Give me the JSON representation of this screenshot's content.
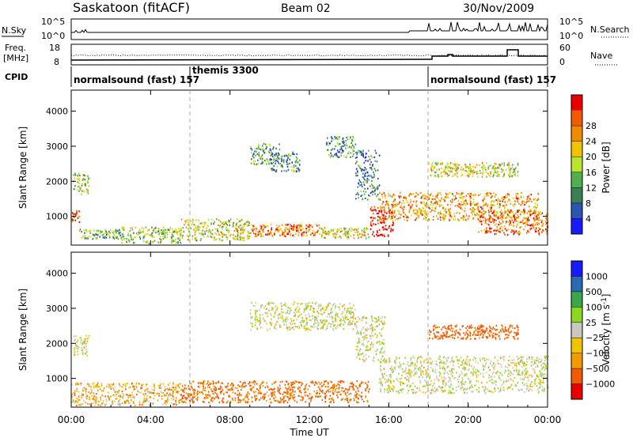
{
  "header": {
    "station": "Saskatoon (fitACF)",
    "beam": "Beam 02",
    "date": "30/Nov/2009"
  },
  "nsky_panel": {
    "left_label": "N.Sky",
    "right_label": "N.Search",
    "left_ticks": [
      "10^5",
      "10^0"
    ],
    "right_ticks": [
      "10^5",
      "10^0"
    ]
  },
  "freq_panel": {
    "left_label_1": "Freq.",
    "left_label_2": "[MHz]",
    "right_label": "Nave",
    "left_ticks": [
      "18",
      "8"
    ],
    "right_ticks": [
      "60",
      "0"
    ]
  },
  "cpid": {
    "label": "CPID",
    "segments": [
      {
        "name": "normalsound (fast) 157",
        "start_hr": 0,
        "end_hr": 6
      },
      {
        "name": "themis 3300",
        "start_hr": 6,
        "end_hr": 18
      },
      {
        "name": "normalsound (fast) 157",
        "start_hr": 18,
        "end_hr": 24
      }
    ]
  },
  "colors": {
    "power": [
      "#1a1aff",
      "#2a56b0",
      "#3d7f55",
      "#4fb04f",
      "#b9e52a",
      "#f2c400",
      "#f28a00",
      "#f25a00",
      "#e80000"
    ],
    "velocity": [
      "#e80000",
      "#f25a00",
      "#f29a00",
      "#f2c400",
      "#c8c8c0",
      "#8ad820",
      "#3aa84a",
      "#2a6ab0",
      "#1a1aff"
    ]
  },
  "chart_data": [
    {
      "type": "heatmap",
      "name": "power",
      "x_ticks": [
        "00:00",
        "04:00",
        "08:00",
        "12:00",
        "16:00",
        "20:00",
        "00:00"
      ],
      "xlim": [
        0,
        24
      ],
      "ylabel": "Slant Range [km]",
      "y_ticks": [
        1000,
        2000,
        3000,
        4000
      ],
      "ylim": [
        180,
        4600
      ],
      "colorbar_label": "Power [dB]",
      "colorbar_ticks": [
        "4",
        "8",
        "12",
        "16",
        "20",
        "24",
        "28"
      ],
      "colorbar_range": [
        0,
        30
      ],
      "echo_regions": [
        {
          "t0": 0.1,
          "t1": 0.9,
          "r0": 1650,
          "r1": 2250,
          "level": 14
        },
        {
          "t0": 0.0,
          "t1": 0.4,
          "r0": 850,
          "r1": 1200,
          "level": 26
        },
        {
          "t0": 0.4,
          "t1": 2.5,
          "r0": 380,
          "r1": 650,
          "level": 12
        },
        {
          "t0": 2.5,
          "t1": 5.5,
          "r0": 250,
          "r1": 720,
          "level": 14
        },
        {
          "t0": 5.5,
          "t1": 9.0,
          "r0": 330,
          "r1": 950,
          "level": 16
        },
        {
          "t0": 9.0,
          "t1": 12.5,
          "r0": 450,
          "r1": 800,
          "level": 23
        },
        {
          "t0": 12.5,
          "t1": 15.0,
          "r0": 400,
          "r1": 700,
          "level": 17
        },
        {
          "t0": 9.0,
          "t1": 10.5,
          "r0": 2500,
          "r1": 3100,
          "level": 10
        },
        {
          "t0": 10.0,
          "t1": 11.5,
          "r0": 2300,
          "r1": 2850,
          "level": 8
        },
        {
          "t0": 12.8,
          "t1": 14.3,
          "r0": 2700,
          "r1": 3300,
          "level": 9
        },
        {
          "t0": 14.3,
          "t1": 15.5,
          "r0": 1500,
          "r1": 2900,
          "level": 7
        },
        {
          "t0": 15.0,
          "t1": 16.2,
          "r0": 450,
          "r1": 1300,
          "level": 29
        },
        {
          "t0": 15.5,
          "t1": 23.5,
          "r0": 900,
          "r1": 1700,
          "level": 21
        },
        {
          "t0": 18.0,
          "t1": 22.5,
          "r0": 2150,
          "r1": 2550,
          "level": 17
        },
        {
          "t0": 20.5,
          "t1": 24.0,
          "r0": 500,
          "r1": 1200,
          "level": 24
        }
      ]
    },
    {
      "type": "heatmap",
      "name": "velocity",
      "x_ticks": [
        "00:00",
        "04:00",
        "08:00",
        "12:00",
        "16:00",
        "20:00",
        "00:00"
      ],
      "xlim": [
        0,
        24
      ],
      "xlabel": "Time UT",
      "ylabel": "Slant Range [km]",
      "y_ticks": [
        1000,
        2000,
        3000,
        4000
      ],
      "ylim": [
        180,
        4600
      ],
      "colorbar_label": "Velocity [m s^-1]",
      "colorbar_ticks": [
        "1000",
        "500",
        "100",
        "25",
        "−25",
        "−100",
        "−500",
        "−1000"
      ],
      "echo_regions": [
        {
          "t0": 0.1,
          "t1": 0.9,
          "r0": 1650,
          "r1": 2250,
          "vel": 0
        },
        {
          "t0": 0.0,
          "t1": 5.5,
          "r0": 250,
          "r1": 900,
          "vel": -60
        },
        {
          "t0": 5.5,
          "t1": 15.0,
          "r0": 330,
          "r1": 950,
          "vel": -120
        },
        {
          "t0": 9.0,
          "t1": 14.3,
          "r0": 2400,
          "r1": 3200,
          "vel": 0
        },
        {
          "t0": 14.3,
          "t1": 15.8,
          "r0": 1500,
          "r1": 2800,
          "vel": 0
        },
        {
          "t0": 15.5,
          "t1": 24.0,
          "r0": 600,
          "r1": 1650,
          "vel": 0
        },
        {
          "t0": 18.0,
          "t1": 22.5,
          "r0": 2150,
          "r1": 2550,
          "vel": -150
        }
      ]
    }
  ]
}
